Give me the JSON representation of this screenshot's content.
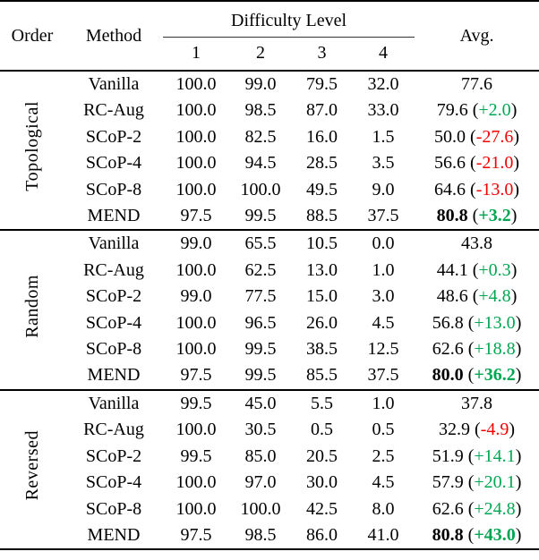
{
  "page": {
    "background": "#ffffff"
  },
  "colors": {
    "positive_delta": "#00a651",
    "negative_delta": "#f20000",
    "rule": "#000000",
    "text": "#000000"
  },
  "table": {
    "header": {
      "order": "Order",
      "method": "Method",
      "difficulty_group": "Difficulty Level",
      "difficulty_levels": [
        "1",
        "2",
        "3",
        "4"
      ],
      "avg": "Avg."
    },
    "punctuation": {
      "open_paren": "(",
      "close_paren": ")"
    },
    "sections": [
      {
        "order_label": "Topological",
        "rows": [
          {
            "method": "Vanilla",
            "values": [
              "100.0",
              "99.0",
              "79.5",
              "32.0"
            ],
            "avg": "77.6",
            "delta": null,
            "delta_sign": null,
            "bold": false
          },
          {
            "method": "RC-Aug",
            "values": [
              "100.0",
              "98.5",
              "87.0",
              "33.0"
            ],
            "avg": "79.6",
            "delta": "+2.0",
            "delta_sign": "positive",
            "bold": false
          },
          {
            "method": "SCoP-2",
            "values": [
              "100.0",
              "82.5",
              "16.0",
              "1.5"
            ],
            "avg": "50.0",
            "delta": "-27.6",
            "delta_sign": "negative",
            "bold": false
          },
          {
            "method": "SCoP-4",
            "values": [
              "100.0",
              "94.5",
              "28.5",
              "3.5"
            ],
            "avg": "56.6",
            "delta": "-21.0",
            "delta_sign": "negative",
            "bold": false
          },
          {
            "method": "SCoP-8",
            "values": [
              "100.0",
              "100.0",
              "49.5",
              "9.0"
            ],
            "avg": "64.6",
            "delta": "-13.0",
            "delta_sign": "negative",
            "bold": false
          },
          {
            "method": "MEND",
            "values": [
              "97.5",
              "99.5",
              "88.5",
              "37.5"
            ],
            "avg": "80.8",
            "delta": "+3.2",
            "delta_sign": "positive",
            "bold": true
          }
        ]
      },
      {
        "order_label": "Random",
        "rows": [
          {
            "method": "Vanilla",
            "values": [
              "99.0",
              "65.5",
              "10.5",
              "0.0"
            ],
            "avg": "43.8",
            "delta": null,
            "delta_sign": null,
            "bold": false
          },
          {
            "method": "RC-Aug",
            "values": [
              "100.0",
              "62.5",
              "13.0",
              "1.0"
            ],
            "avg": "44.1",
            "delta": "+0.3",
            "delta_sign": "positive",
            "bold": false
          },
          {
            "method": "SCoP-2",
            "values": [
              "99.0",
              "77.5",
              "15.0",
              "3.0"
            ],
            "avg": "48.6",
            "delta": "+4.8",
            "delta_sign": "positive",
            "bold": false
          },
          {
            "method": "SCoP-4",
            "values": [
              "100.0",
              "96.5",
              "26.0",
              "4.5"
            ],
            "avg": "56.8",
            "delta": "+13.0",
            "delta_sign": "positive",
            "bold": false
          },
          {
            "method": "SCoP-8",
            "values": [
              "100.0",
              "99.5",
              "38.5",
              "12.5"
            ],
            "avg": "62.6",
            "delta": "+18.8",
            "delta_sign": "positive",
            "bold": false
          },
          {
            "method": "MEND",
            "values": [
              "97.5",
              "99.5",
              "85.5",
              "37.5"
            ],
            "avg": "80.0",
            "delta": "+36.2",
            "delta_sign": "positive",
            "bold": true
          }
        ]
      },
      {
        "order_label": "Reversed",
        "rows": [
          {
            "method": "Vanilla",
            "values": [
              "99.5",
              "45.0",
              "5.5",
              "1.0"
            ],
            "avg": "37.8",
            "delta": null,
            "delta_sign": null,
            "bold": false
          },
          {
            "method": "RC-Aug",
            "values": [
              "100.0",
              "30.5",
              "0.5",
              "0.5"
            ],
            "avg": "32.9",
            "delta": "-4.9",
            "delta_sign": "negative",
            "bold": false
          },
          {
            "method": "SCoP-2",
            "values": [
              "99.5",
              "85.0",
              "20.5",
              "2.5"
            ],
            "avg": "51.9",
            "delta": "+14.1",
            "delta_sign": "positive",
            "bold": false
          },
          {
            "method": "SCoP-4",
            "values": [
              "100.0",
              "97.0",
              "30.0",
              "4.5"
            ],
            "avg": "57.9",
            "delta": "+20.1",
            "delta_sign": "positive",
            "bold": false
          },
          {
            "method": "SCoP-8",
            "values": [
              "100.0",
              "100.0",
              "42.5",
              "8.0"
            ],
            "avg": "62.6",
            "delta": "+24.8",
            "delta_sign": "positive",
            "bold": false
          },
          {
            "method": "MEND",
            "values": [
              "97.5",
              "98.5",
              "86.0",
              "41.0"
            ],
            "avg": "80.8",
            "delta": "+43.0",
            "delta_sign": "positive",
            "bold": true
          }
        ]
      }
    ]
  }
}
